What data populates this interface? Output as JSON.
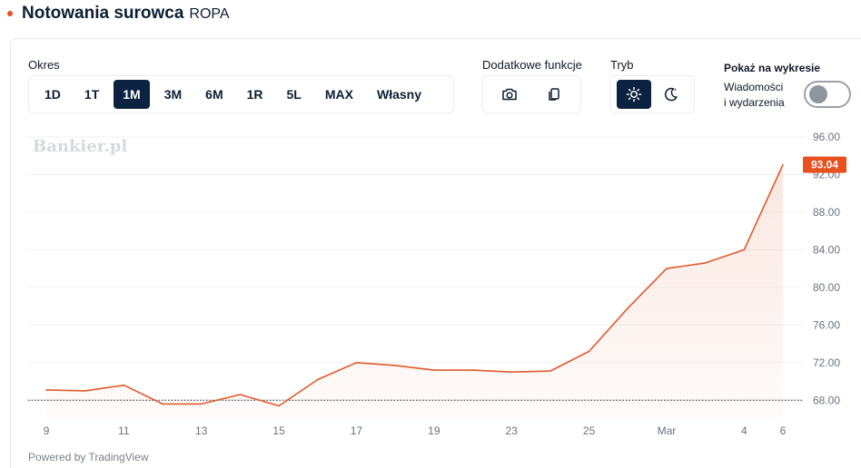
{
  "header": {
    "title": "Notowania surowca",
    "instrument": "ROPA"
  },
  "controls": {
    "period_label": "Okres",
    "periods": [
      {
        "label": "1D",
        "active": false
      },
      {
        "label": "1T",
        "active": false
      },
      {
        "label": "1M",
        "active": true
      },
      {
        "label": "3M",
        "active": false
      },
      {
        "label": "6M",
        "active": false
      },
      {
        "label": "1R",
        "active": false
      },
      {
        "label": "5L",
        "active": false
      },
      {
        "label": "MAX",
        "active": false
      },
      {
        "label": "Własny",
        "active": false
      }
    ],
    "extra_label": "Dodatkowe funkcje",
    "extra_icons": [
      "camera-icon",
      "copy-icon"
    ],
    "mode_label": "Tryb",
    "mode_icons": [
      {
        "icon": "sun-icon",
        "active": true
      },
      {
        "icon": "moon-icon",
        "active": false
      }
    ],
    "show_label": "Pokaż na wykresie",
    "news_label_line1": "Wiadomości",
    "news_label_line2": "i wydarzenia",
    "news_toggle_on": false
  },
  "watermark": "Bankier.pl",
  "powered_by": "Powered by TradingView",
  "colors": {
    "accent": "#e8501f",
    "active_button": "#0b2340",
    "line": "#e05a2b"
  },
  "chart_data": {
    "type": "area",
    "title": "",
    "xlabel": "",
    "ylabel": "",
    "x_ticks": [
      "9",
      "11",
      "13",
      "15",
      "17",
      "19",
      "23",
      "25",
      "Mar",
      "4",
      "6"
    ],
    "y_ticks": [
      "96.00",
      "92.00",
      "88.00",
      "84.00",
      "80.00",
      "76.00",
      "72.00",
      "68.00"
    ],
    "ylim": [
      66.0,
      96.0
    ],
    "reference_line": 68.0,
    "last_value_label": "93.04",
    "grid": true,
    "series": [
      {
        "values": [
          69.1,
          69.0,
          69.6,
          67.6,
          67.6,
          68.6,
          67.4,
          70.2,
          72.0,
          71.7,
          71.2,
          71.2,
          71.0,
          71.1,
          73.2,
          77.8,
          82.0,
          82.6,
          84.0,
          93.04
        ]
      }
    ]
  }
}
